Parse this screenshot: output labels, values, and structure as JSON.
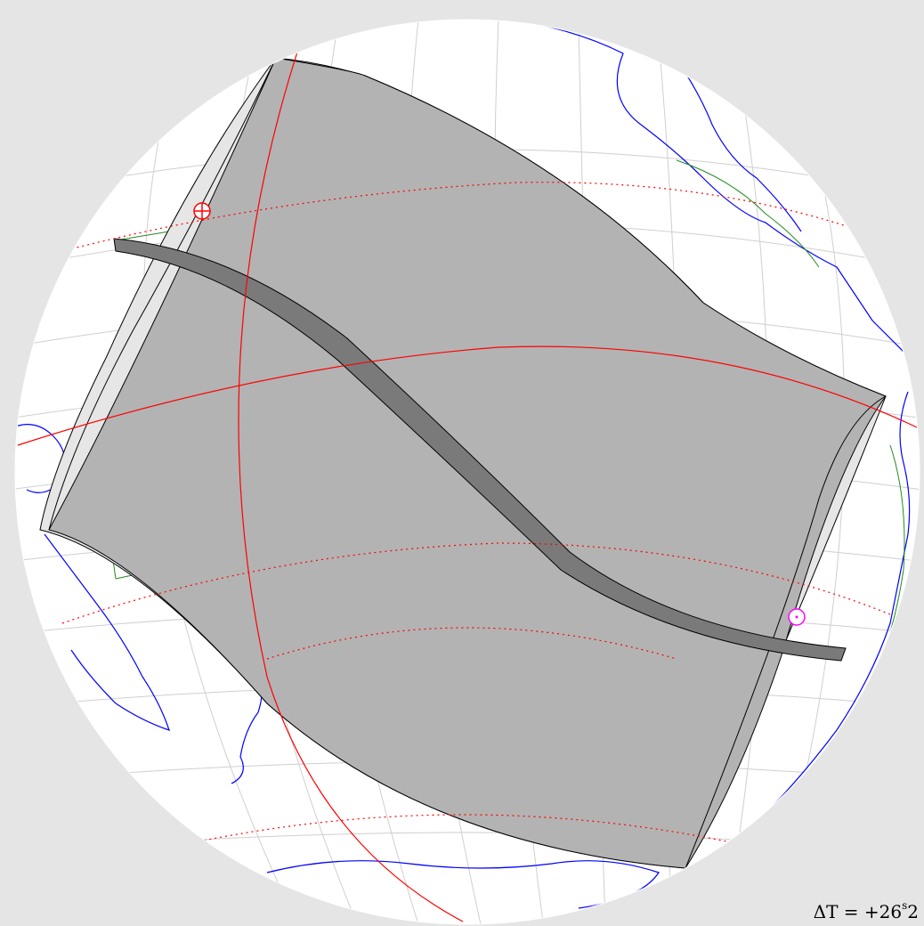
{
  "map": {
    "projection": "orthographic",
    "colors": {
      "background": "#e5e5e5",
      "globe": "#ffffff",
      "graticule": "#cfcfcf",
      "penumbra_shadow": "#b3b3b3",
      "penumbra_edge": "#e6e6e6",
      "umbra_path": "#7a7a7a",
      "coastline": "#0000ff",
      "borders": "#228b22",
      "great_circle": "#ff0000",
      "tropic_lines": "#ff0000",
      "greatest_eclipse_marker": "#ff00ff",
      "max_point_marker": "#ff0000"
    },
    "markers": {
      "start_marker_icon": "crosshair-circle-icon",
      "greatest_eclipse_icon": "sun-dot-icon"
    }
  },
  "annotation": {
    "delta_t_prefix": "ΔT = +26",
    "delta_t_unit": "s",
    "delta_t_suffix": "2"
  }
}
